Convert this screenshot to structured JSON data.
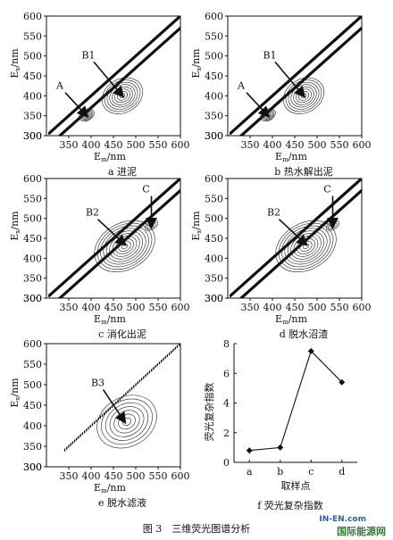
{
  "chart_data": [
    {
      "type": "contour",
      "panel": "a",
      "caption": "a 进泥",
      "xlabel": "Em/nm",
      "ylabel": "Ex/nm",
      "xticks": [
        350,
        400,
        450,
        500,
        550,
        600
      ],
      "yticks": [
        300,
        350,
        400,
        450,
        500,
        550,
        600
      ],
      "xlim": [
        300,
        600
      ],
      "ylim": [
        300,
        600
      ],
      "annotations": [
        {
          "label": "A",
          "x": 390,
          "y": 350
        },
        {
          "label": "B1",
          "x": 470,
          "y": 400
        }
      ]
    },
    {
      "type": "contour",
      "panel": "b",
      "caption": "b 热水解出泥",
      "xlabel": "Em/nm",
      "ylabel": "Ex/nm",
      "xticks": [
        350,
        400,
        450,
        500,
        550,
        600
      ],
      "yticks": [
        300,
        350,
        400,
        450,
        500,
        550,
        600
      ],
      "xlim": [
        300,
        600
      ],
      "ylim": [
        300,
        600
      ],
      "annotations": [
        {
          "label": "A",
          "x": 390,
          "y": 350
        },
        {
          "label": "B1",
          "x": 470,
          "y": 400
        }
      ]
    },
    {
      "type": "contour",
      "panel": "c",
      "caption": "c 消化出泥",
      "xlabel": "Em/nm",
      "ylabel": "Ex/nm",
      "xticks": [
        350,
        400,
        450,
        500,
        550,
        600
      ],
      "yticks": [
        300,
        350,
        400,
        450,
        500,
        550,
        600
      ],
      "xlim": [
        300,
        600
      ],
      "ylim": [
        300,
        600
      ],
      "annotations": [
        {
          "label": "C",
          "x": 535,
          "y": 480
        },
        {
          "label": "B2",
          "x": 475,
          "y": 435
        }
      ]
    },
    {
      "type": "contour",
      "panel": "d",
      "caption": "d 脱水沼渣",
      "xlabel": "Em/nm",
      "ylabel": "Ex/nm",
      "xticks": [
        350,
        400,
        450,
        500,
        550,
        600
      ],
      "yticks": [
        300,
        350,
        400,
        450,
        500,
        550,
        600
      ],
      "xlim": [
        300,
        600
      ],
      "ylim": [
        300,
        600
      ],
      "annotations": [
        {
          "label": "C",
          "x": 535,
          "y": 480
        },
        {
          "label": "B2",
          "x": 475,
          "y": 435
        }
      ]
    },
    {
      "type": "contour",
      "panel": "e",
      "caption": "e 脱水滤液",
      "xlabel": "Em/nm",
      "ylabel": "Ex/nm",
      "xticks": [
        350,
        400,
        450,
        500,
        550,
        600
      ],
      "yticks": [
        300,
        350,
        400,
        450,
        500,
        550,
        600
      ],
      "xlim": [
        300,
        600
      ],
      "ylim": [
        300,
        600
      ],
      "annotations": [
        {
          "label": "B3",
          "x": 475,
          "y": 410
        }
      ]
    },
    {
      "type": "line",
      "panel": "f",
      "caption": "f 荧光复杂指数",
      "categories": [
        "a",
        "b",
        "c",
        "d"
      ],
      "values": [
        0.8,
        1.0,
        7.5,
        5.4
      ],
      "xlabel": "取样点",
      "ylabel": "荧光复杂指数",
      "yticks": [
        0,
        2,
        4,
        6,
        8
      ],
      "ylim": [
        0,
        8
      ],
      "grid": false
    }
  ],
  "figure_caption": "图 3　三维荧光图谱分析",
  "watermark": {
    "top": "IN-EN.com",
    "bottom": "国际能源网"
  }
}
